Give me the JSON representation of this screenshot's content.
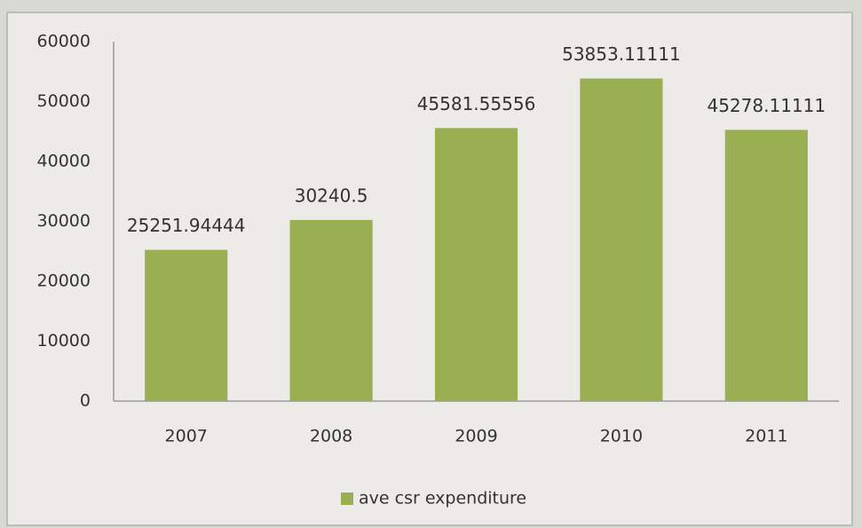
{
  "chart_data": {
    "type": "bar",
    "categories": [
      "2007",
      "2008",
      "2009",
      "2010",
      "2011"
    ],
    "series": [
      {
        "name": "ave csr expenditure",
        "color": "#9aae52",
        "values": [
          25251.94444,
          30240.5,
          45581.55556,
          53853.11111,
          45278.11111
        ]
      }
    ],
    "ylim": [
      0,
      60000
    ],
    "yticks": [
      0,
      10000,
      20000,
      30000,
      40000,
      50000,
      60000
    ],
    "grid": false,
    "legend": "bottom"
  }
}
